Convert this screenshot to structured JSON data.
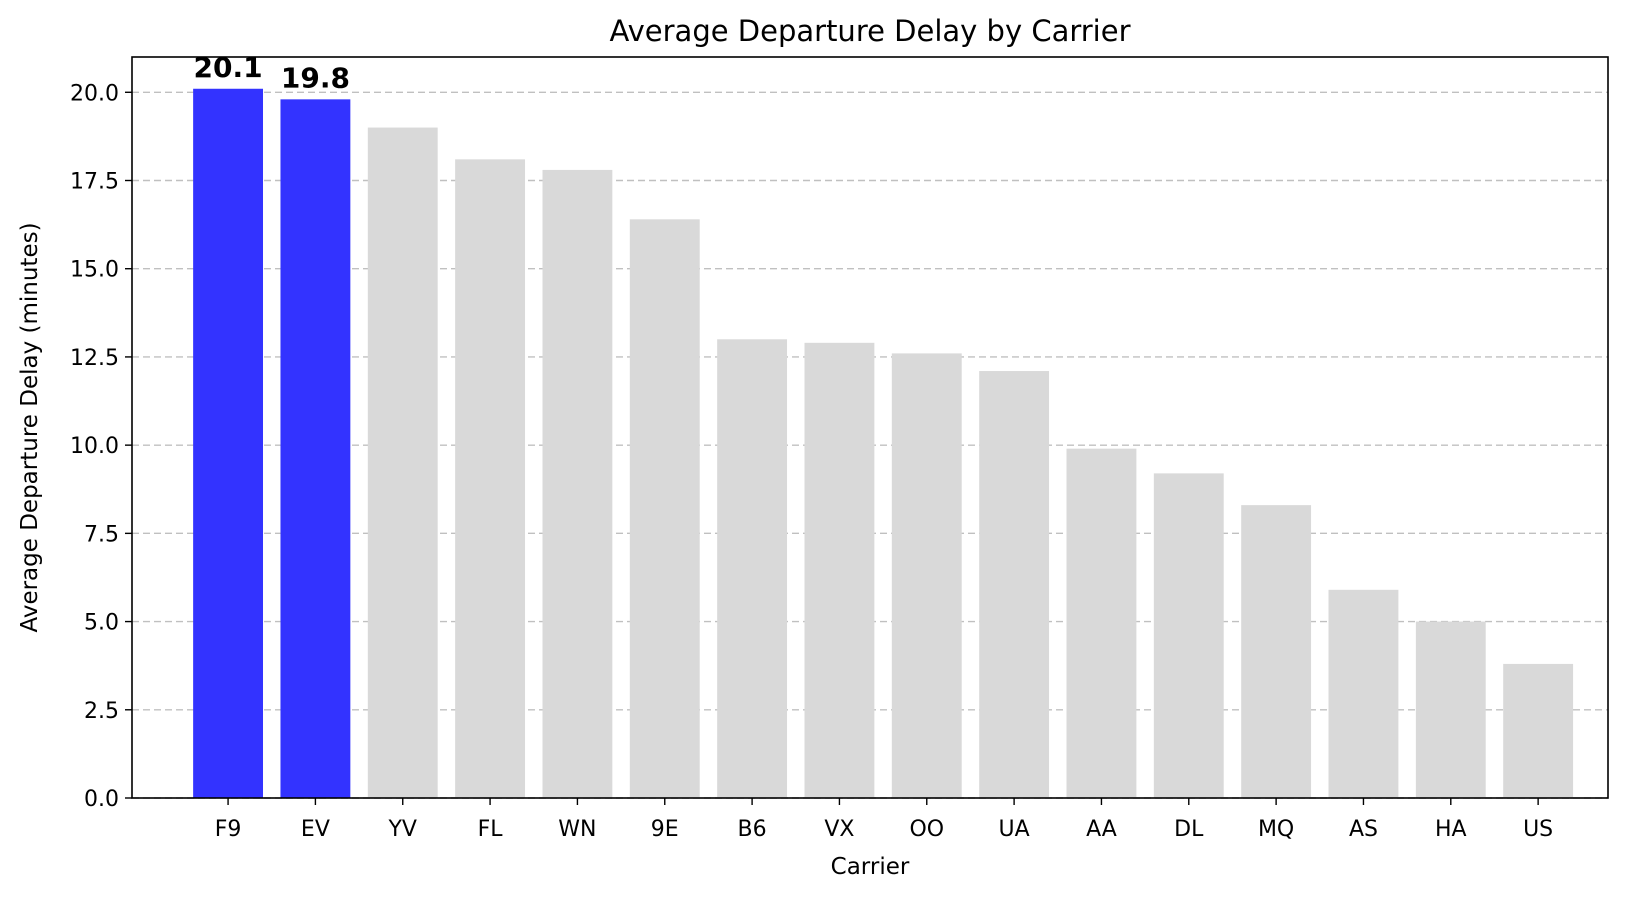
{
  "chart_data": {
    "type": "bar",
    "title": "Average Departure Delay by Carrier",
    "xlabel": "Carrier",
    "ylabel": "Average Departure Delay (minutes)",
    "categories": [
      "F9",
      "EV",
      "YV",
      "FL",
      "WN",
      "9E",
      "B6",
      "VX",
      "OO",
      "UA",
      "AA",
      "DL",
      "MQ",
      "AS",
      "HA",
      "US"
    ],
    "values": [
      20.1,
      19.8,
      19.0,
      18.1,
      17.8,
      16.4,
      13.0,
      12.9,
      12.6,
      12.1,
      9.9,
      9.2,
      8.3,
      5.9,
      5.0,
      3.8
    ],
    "highlighted": [
      true,
      true,
      false,
      false,
      false,
      false,
      false,
      false,
      false,
      false,
      false,
      false,
      false,
      false,
      false,
      false
    ],
    "data_labels": [
      "20.1",
      "19.8",
      "",
      "",
      "",
      "",
      "",
      "",
      "",
      "",
      "",
      "",
      "",
      "",
      "",
      ""
    ],
    "ylim": [
      0,
      21
    ],
    "yticks": [
      0.0,
      2.5,
      5.0,
      7.5,
      10.0,
      12.5,
      15.0,
      17.5,
      20.0
    ],
    "ytick_labels": [
      "0.0",
      "2.5",
      "5.0",
      "7.5",
      "10.0",
      "12.5",
      "15.0",
      "17.5",
      "20.0"
    ],
    "grid": "y-dashed",
    "legend": "none",
    "colors": {
      "highlight": "#3333ff",
      "default": "#d9d9d9",
      "grid": "#c0c0c0",
      "axis": "#000000"
    }
  }
}
